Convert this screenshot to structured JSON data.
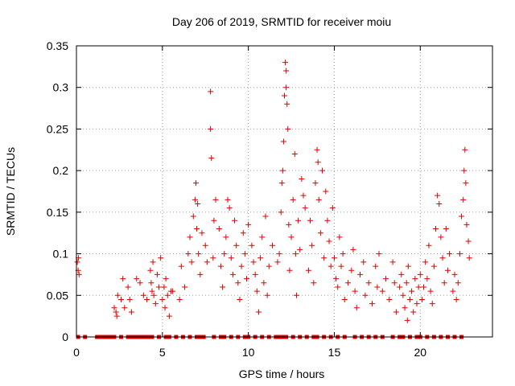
{
  "chart_data": {
    "type": "scatter",
    "title": "Day 206 of 2019, SRMTID for receiver moiu",
    "xlabel": "GPS time / hours",
    "ylabel": "SRMTID / TECUs",
    "xlim": [
      0,
      24.2
    ],
    "ylim": [
      0,
      0.35
    ],
    "xticks": [
      0,
      5,
      10,
      15,
      20
    ],
    "yticks": [
      0,
      0.05,
      0.1,
      0.15,
      0.2,
      0.25,
      0.3,
      0.35
    ],
    "xtick_labels": [
      "0",
      "5",
      "10",
      "15",
      "20"
    ],
    "ytick_labels": [
      "0",
      "0.05",
      "0.1",
      "0.15",
      "0.2",
      "0.25",
      "0.3",
      "0.35"
    ],
    "grid": true,
    "marker": "+",
    "color": "#e00000",
    "series": [
      {
        "name": "SRMTID",
        "points": [
          [
            0.05,
            0.09
          ],
          [
            0.1,
            0.08
          ],
          [
            0.12,
            0.095
          ],
          [
            0.15,
            0.075
          ],
          [
            2.2,
            0.035
          ],
          [
            2.3,
            0.03
          ],
          [
            2.35,
            0.025
          ],
          [
            2.4,
            0.05
          ],
          [
            2.6,
            0.045
          ],
          [
            2.7,
            0.07
          ],
          [
            2.8,
            0.035
          ],
          [
            3.0,
            0.06
          ],
          [
            3.1,
            0.045
          ],
          [
            3.2,
            0.03
          ],
          [
            3.5,
            0.07
          ],
          [
            3.7,
            0.065
          ],
          [
            3.9,
            0.05
          ],
          [
            4.1,
            0.045
          ],
          [
            4.3,
            0.08
          ],
          [
            4.35,
            0.065
          ],
          [
            4.4,
            0.055
          ],
          [
            4.45,
            0.09
          ],
          [
            4.5,
            0.05
          ],
          [
            4.6,
            0.04
          ],
          [
            4.7,
            0.075
          ],
          [
            4.8,
            0.06
          ],
          [
            4.9,
            0.095
          ],
          [
            5.0,
            0.045
          ],
          [
            5.1,
            0.06
          ],
          [
            5.15,
            0.035
          ],
          [
            5.2,
            0.07
          ],
          [
            5.3,
            0.05
          ],
          [
            5.4,
            0.025
          ],
          [
            5.5,
            0.055
          ],
          [
            5.6,
            0.055
          ],
          [
            6.0,
            0.045
          ],
          [
            6.1,
            0.085
          ],
          [
            6.3,
            0.06
          ],
          [
            6.5,
            0.1
          ],
          [
            6.6,
            0.12
          ],
          [
            6.7,
            0.09
          ],
          [
            6.8,
            0.145
          ],
          [
            6.9,
            0.165
          ],
          [
            6.95,
            0.185
          ],
          [
            7.0,
            0.13
          ],
          [
            7.05,
            0.16
          ],
          [
            7.1,
            0.1
          ],
          [
            7.2,
            0.075
          ],
          [
            7.3,
            0.125
          ],
          [
            7.5,
            0.11
          ],
          [
            7.6,
            0.09
          ],
          [
            7.8,
            0.295
          ],
          [
            7.8,
            0.25
          ],
          [
            7.85,
            0.215
          ],
          [
            7.95,
            0.095
          ],
          [
            8.0,
            0.14
          ],
          [
            8.1,
            0.165
          ],
          [
            8.3,
            0.13
          ],
          [
            8.4,
            0.085
          ],
          [
            8.5,
            0.06
          ],
          [
            8.6,
            0.1
          ],
          [
            8.7,
            0.12
          ],
          [
            8.8,
            0.165
          ],
          [
            8.9,
            0.155
          ],
          [
            9.0,
            0.095
          ],
          [
            9.1,
            0.075
          ],
          [
            9.2,
            0.14
          ],
          [
            9.3,
            0.11
          ],
          [
            9.4,
            0.065
          ],
          [
            9.5,
            0.045
          ],
          [
            9.6,
            0.085
          ],
          [
            9.7,
            0.125
          ],
          [
            9.8,
            0.1
          ],
          [
            9.9,
            0.07
          ],
          [
            10.0,
            0.135
          ],
          [
            10.2,
            0.11
          ],
          [
            10.3,
            0.09
          ],
          [
            10.4,
            0.075
          ],
          [
            10.5,
            0.055
          ],
          [
            10.6,
            0.03
          ],
          [
            10.7,
            0.095
          ],
          [
            10.8,
            0.12
          ],
          [
            10.9,
            0.065
          ],
          [
            11.0,
            0.145
          ],
          [
            11.1,
            0.05
          ],
          [
            11.2,
            0.085
          ],
          [
            11.4,
            0.11
          ],
          [
            11.7,
            0.09
          ],
          [
            11.8,
            0.1
          ],
          [
            11.9,
            0.15
          ],
          [
            11.95,
            0.185
          ],
          [
            12.0,
            0.2
          ],
          [
            12.05,
            0.235
          ],
          [
            12.1,
            0.29
          ],
          [
            12.15,
            0.33
          ],
          [
            12.2,
            0.32
          ],
          [
            12.2,
            0.3
          ],
          [
            12.25,
            0.28
          ],
          [
            12.3,
            0.25
          ],
          [
            12.35,
            0.135
          ],
          [
            12.4,
            0.08
          ],
          [
            12.5,
            0.12
          ],
          [
            12.6,
            0.165
          ],
          [
            12.7,
            0.22
          ],
          [
            12.75,
            0.1
          ],
          [
            12.8,
            0.05
          ],
          [
            12.9,
            0.14
          ],
          [
            13.0,
            0.105
          ],
          [
            13.1,
            0.19
          ],
          [
            13.2,
            0.17
          ],
          [
            13.3,
            0.155
          ],
          [
            13.5,
            0.08
          ],
          [
            13.6,
            0.14
          ],
          [
            13.7,
            0.11
          ],
          [
            13.8,
            0.065
          ],
          [
            13.9,
            0.185
          ],
          [
            14.0,
            0.225
          ],
          [
            14.05,
            0.21
          ],
          [
            14.1,
            0.165
          ],
          [
            14.2,
            0.125
          ],
          [
            14.3,
            0.2
          ],
          [
            14.4,
            0.095
          ],
          [
            14.5,
            0.175
          ],
          [
            14.6,
            0.14
          ],
          [
            14.7,
            0.115
          ],
          [
            14.8,
            0.085
          ],
          [
            14.9,
            0.155
          ],
          [
            15.0,
            0.095
          ],
          [
            15.1,
            0.07
          ],
          [
            15.2,
            0.06
          ],
          [
            15.3,
            0.12
          ],
          [
            15.4,
            0.085
          ],
          [
            15.5,
            0.1
          ],
          [
            15.6,
            0.045
          ],
          [
            15.8,
            0.065
          ],
          [
            16.0,
            0.08
          ],
          [
            16.1,
            0.105
          ],
          [
            16.2,
            0.055
          ],
          [
            16.3,
            0.035
          ],
          [
            16.5,
            0.075
          ],
          [
            16.7,
            0.09
          ],
          [
            16.8,
            0.05
          ],
          [
            17.0,
            0.065
          ],
          [
            17.2,
            0.04
          ],
          [
            17.4,
            0.085
          ],
          [
            17.5,
            0.06
          ],
          [
            17.6,
            0.1
          ],
          [
            17.8,
            0.055
          ],
          [
            18.0,
            0.07
          ],
          [
            18.2,
            0.045
          ],
          [
            18.4,
            0.09
          ],
          [
            18.5,
            0.065
          ],
          [
            18.6,
            0.03
          ],
          [
            18.8,
            0.06
          ],
          [
            18.9,
            0.075
          ],
          [
            19.0,
            0.05
          ],
          [
            19.1,
            0.035
          ],
          [
            19.2,
            0.065
          ],
          [
            19.25,
            0.02
          ],
          [
            19.3,
            0.085
          ],
          [
            19.4,
            0.045
          ],
          [
            19.5,
            0.055
          ],
          [
            19.6,
            0.03
          ],
          [
            19.7,
            0.07
          ],
          [
            19.8,
            0.04
          ],
          [
            19.9,
            0.06
          ],
          [
            20.0,
            0.075
          ],
          [
            20.1,
            0.045
          ],
          [
            20.2,
            0.06
          ],
          [
            20.3,
            0.09
          ],
          [
            20.4,
            0.07
          ],
          [
            20.5,
            0.11
          ],
          [
            20.6,
            0.055
          ],
          [
            20.7,
            0.04
          ],
          [
            20.8,
            0.085
          ],
          [
            20.9,
            0.13
          ],
          [
            21.0,
            0.17
          ],
          [
            21.1,
            0.16
          ],
          [
            21.2,
            0.12
          ],
          [
            21.3,
            0.095
          ],
          [
            21.4,
            0.065
          ],
          [
            21.5,
            0.13
          ],
          [
            21.6,
            0.08
          ],
          [
            21.7,
            0.1
          ],
          [
            21.9,
            0.055
          ],
          [
            22.0,
            0.075
          ],
          [
            22.1,
            0.045
          ],
          [
            22.2,
            0.065
          ],
          [
            22.3,
            0.1
          ],
          [
            22.4,
            0.145
          ],
          [
            22.5,
            0.165
          ],
          [
            22.55,
            0.2
          ],
          [
            22.6,
            0.225
          ],
          [
            22.65,
            0.185
          ],
          [
            22.7,
            0.135
          ],
          [
            22.8,
            0.115
          ],
          [
            22.85,
            0.095
          ]
        ],
        "zero_points": [
          0.1,
          0.5,
          1.2,
          1.4,
          1.6,
          1.8,
          2.0,
          2.2,
          2.6,
          3.0,
          3.2,
          3.4,
          3.6,
          3.8,
          4.0,
          4.2,
          4.4,
          4.8,
          5.2,
          5.4,
          5.8,
          6.2,
          6.6,
          7.0,
          7.2,
          7.4,
          8.0,
          8.4,
          8.6,
          9.0,
          9.4,
          9.8,
          10.0,
          10.4,
          10.8,
          11.2,
          11.6,
          11.8,
          12.0,
          12.2,
          12.6,
          13.0,
          13.4,
          13.8,
          14.0,
          14.4,
          14.8,
          15.2,
          15.6,
          16.2,
          16.6,
          17.0,
          17.4,
          17.8,
          18.4,
          18.8,
          19.0,
          19.4,
          19.8,
          20.0,
          20.4,
          20.8,
          21.2,
          21.6,
          22.0,
          22.4
        ]
      }
    ]
  }
}
